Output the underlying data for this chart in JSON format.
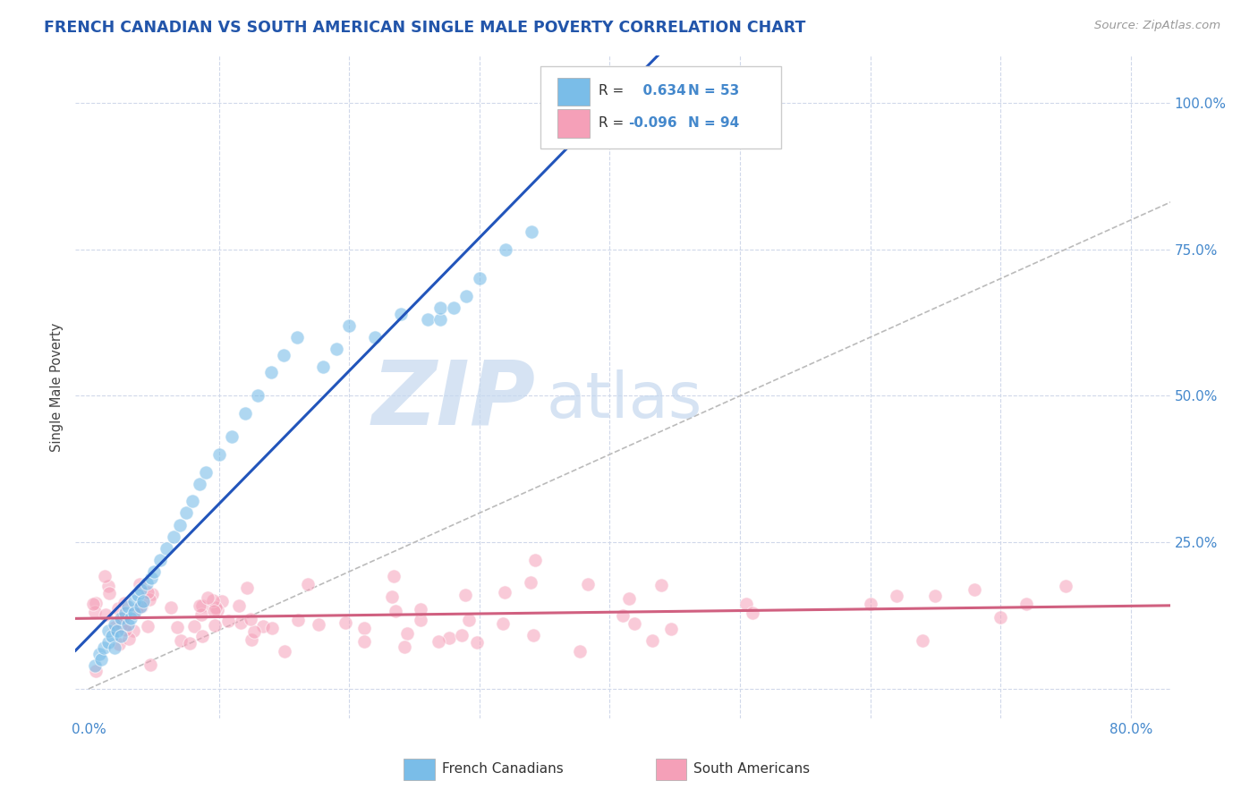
{
  "title": "FRENCH CANADIAN VS SOUTH AMERICAN SINGLE MALE POVERTY CORRELATION CHART",
  "source": "Source: ZipAtlas.com",
  "ylabel_val": "Single Male Poverty",
  "x_ticks": [
    0.0,
    0.1,
    0.2,
    0.3,
    0.4,
    0.5,
    0.6,
    0.7,
    0.8
  ],
  "x_tick_labels": [
    "0.0%",
    "",
    "",
    "",
    "",
    "",
    "",
    "",
    "80.0%"
  ],
  "y_ticks": [
    0.0,
    0.25,
    0.5,
    0.75,
    1.0
  ],
  "y_tick_labels_right": [
    "",
    "25.0%",
    "50.0%",
    "75.0%",
    "100.0%"
  ],
  "xlim": [
    -0.01,
    0.83
  ],
  "ylim": [
    -0.05,
    1.08
  ],
  "french_color": "#7abde8",
  "south_color": "#f5a0b8",
  "french_line_color": "#2255bb",
  "south_line_color": "#d06080",
  "french_R": 0.634,
  "french_N": 53,
  "south_R": -0.096,
  "south_N": 94,
  "watermark_zip": "ZIP",
  "watermark_atlas": "atlas",
  "watermark_color": "#c5d8ef",
  "bg_color": "#ffffff",
  "grid_color": "#d0d8ea",
  "title_color": "#2255aa",
  "axis_label_color": "#444444",
  "tick_label_color": "#4488cc",
  "legend_color_blue": "#4488cc",
  "legend_color_black": "#333333",
  "diag_color": "#bbbbbb"
}
